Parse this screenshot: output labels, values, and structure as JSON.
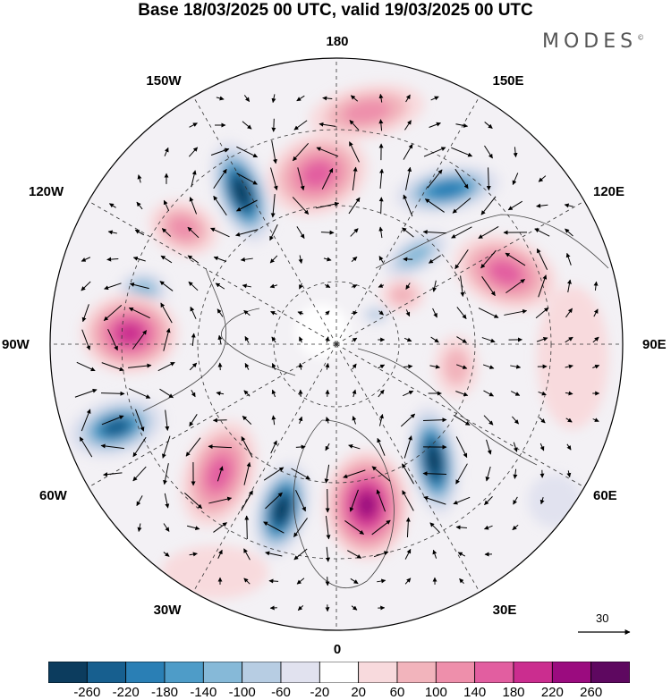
{
  "title": "Base 18/03/2025 00 UTC, valid 19/03/2025 00 UTC",
  "brand": "MODES",
  "brand_mark": "©",
  "longitude_labels": [
    {
      "text": "180"
    },
    {
      "text": "150E"
    },
    {
      "text": "120E"
    },
    {
      "text": "90E"
    },
    {
      "text": "60E"
    },
    {
      "text": "30E"
    },
    {
      "text": "0"
    },
    {
      "text": "30W"
    },
    {
      "text": "60W"
    },
    {
      "text": "90W"
    },
    {
      "text": "120W"
    },
    {
      "text": "150W"
    }
  ],
  "colorbar": {
    "ticks": [
      "-260",
      "-220",
      "-180",
      "-140",
      "-100",
      "-60",
      "-20",
      "20",
      "60",
      "100",
      "140",
      "180",
      "220",
      "260"
    ],
    "colors": [
      "#0c3c5e",
      "#175f8f",
      "#2a7fb5",
      "#4e9cc8",
      "#86b9d8",
      "#b7cde3",
      "#e1e2ef",
      "#ffffff",
      "#f8dadd",
      "#f2b4bc",
      "#ee8fab",
      "#e25ea0",
      "#cb2d8f",
      "#9b0b7f",
      "#5e0860"
    ]
  },
  "vector_reference": {
    "value": "30"
  },
  "map_colors": {
    "ocean": "#ffffff",
    "outline": "#000000",
    "grid": "#333333",
    "coast": "#444444"
  }
}
